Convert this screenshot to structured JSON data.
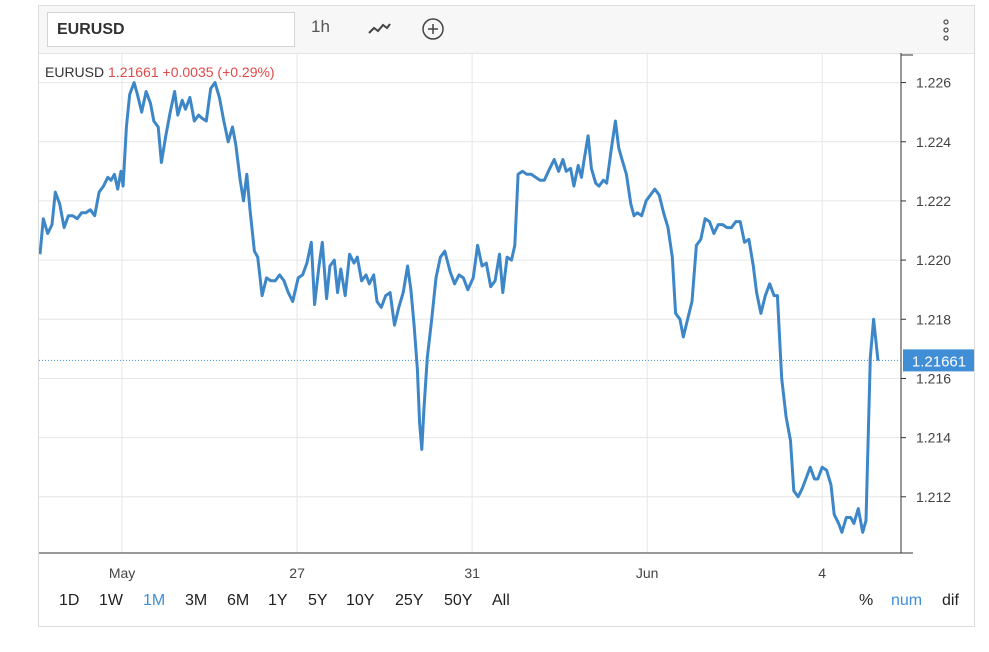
{
  "toolbar": {
    "symbol": "EURUSD",
    "interval": "1h",
    "icons": [
      "line-chart-icon",
      "add-circle-icon",
      "more-vertical-icon"
    ]
  },
  "header": {
    "symbol": "EURUSD",
    "price": "1.21661",
    "change": "+0.0035",
    "change_pct": "(+0.29%)",
    "change_color": "#e04a4a"
  },
  "price_label": "1.21661",
  "ranges": [
    "1D",
    "1W",
    "1M",
    "3M",
    "6M",
    "1Y",
    "5Y",
    "10Y",
    "25Y",
    "50Y",
    "All"
  ],
  "active_range": "1M",
  "modes": [
    "%",
    "num",
    "dif"
  ],
  "active_mode": "num",
  "colors": {
    "line": "#3d87c8",
    "accent": "#3f8ed6",
    "grid": "#e6e6e6"
  },
  "chart_data": {
    "type": "line",
    "title": "",
    "xlabel": "",
    "ylabel": "",
    "x_ticks": [
      {
        "label": "May",
        "x": 7.5
      },
      {
        "label": "27",
        "x": 23.5
      },
      {
        "label": "31",
        "x": 39.5
      },
      {
        "label": "Jun",
        "x": 55.5
      },
      {
        "label": "4",
        "x": 71.5
      }
    ],
    "y_ticks": [
      1.212,
      1.214,
      1.216,
      1.218,
      1.22,
      1.222,
      1.224,
      1.226
    ],
    "ylim": [
      1.2101,
      1.227
    ],
    "xlim": [
      0,
      74
    ],
    "grid": true,
    "last_value": 1.21661,
    "series": [
      {
        "name": "",
        "points": [
          [
            0,
            1.2202
          ],
          [
            0.3,
            1.2214
          ],
          [
            0.7,
            1.2209
          ],
          [
            1.1,
            1.2212
          ],
          [
            1.4,
            1.2223
          ],
          [
            1.8,
            1.2219
          ],
          [
            2.2,
            1.2211
          ],
          [
            2.6,
            1.2215
          ],
          [
            3.0,
            1.2215
          ],
          [
            3.4,
            1.2214
          ],
          [
            3.8,
            1.2216
          ],
          [
            4.2,
            1.2216
          ],
          [
            4.6,
            1.2217
          ],
          [
            5.0,
            1.2215
          ],
          [
            5.4,
            1.2223
          ],
          [
            5.8,
            1.2225
          ],
          [
            6.2,
            1.2228
          ],
          [
            6.5,
            1.2227
          ],
          [
            6.8,
            1.2229
          ],
          [
            7.1,
            1.2224
          ],
          [
            7.4,
            1.223
          ],
          [
            7.6,
            1.2225
          ],
          [
            7.9,
            1.2245
          ],
          [
            8.2,
            1.2256
          ],
          [
            8.6,
            1.226
          ],
          [
            8.9,
            1.2256
          ],
          [
            9.3,
            1.225
          ],
          [
            9.7,
            1.2257
          ],
          [
            10.1,
            1.2253
          ],
          [
            10.4,
            1.2247
          ],
          [
            10.8,
            1.2245
          ],
          [
            11.1,
            1.2233
          ],
          [
            11.5,
            1.2242
          ],
          [
            11.9,
            1.225
          ],
          [
            12.3,
            1.2257
          ],
          [
            12.6,
            1.2249
          ],
          [
            13.0,
            1.2254
          ],
          [
            13.3,
            1.2251
          ],
          [
            13.7,
            1.2255
          ],
          [
            14.1,
            1.2247
          ],
          [
            14.5,
            1.2249
          ],
          [
            14.8,
            1.2248
          ],
          [
            15.2,
            1.2247
          ],
          [
            15.6,
            1.2258
          ],
          [
            16.0,
            1.226
          ],
          [
            16.4,
            1.2255
          ],
          [
            16.8,
            1.2247
          ],
          [
            17.2,
            1.224
          ],
          [
            17.6,
            1.2245
          ],
          [
            17.9,
            1.2239
          ],
          [
            18.3,
            1.2227
          ],
          [
            18.6,
            1.222
          ],
          [
            18.9,
            1.2229
          ],
          [
            19.2,
            1.2217
          ],
          [
            19.6,
            1.2203
          ],
          [
            19.9,
            1.2201
          ],
          [
            20.3,
            1.2188
          ],
          [
            20.7,
            1.2194
          ],
          [
            21.1,
            1.2193
          ],
          [
            21.5,
            1.2193
          ],
          [
            21.9,
            1.2195
          ],
          [
            22.3,
            1.2193
          ],
          [
            22.7,
            1.2189
          ],
          [
            23.1,
            1.2186
          ],
          [
            23.6,
            1.2194
          ],
          [
            24.0,
            1.2195
          ],
          [
            24.4,
            1.2199
          ],
          [
            24.8,
            1.2206
          ],
          [
            25.1,
            1.2185
          ],
          [
            25.5,
            1.2198
          ],
          [
            25.8,
            1.2206
          ],
          [
            26.2,
            1.2187
          ],
          [
            26.5,
            1.2198
          ],
          [
            26.9,
            1.22
          ],
          [
            27.2,
            1.2189
          ],
          [
            27.5,
            1.2197
          ],
          [
            27.9,
            1.2188
          ],
          [
            28.3,
            1.2202
          ],
          [
            28.7,
            1.2199
          ],
          [
            29.0,
            1.2201
          ],
          [
            29.4,
            1.2193
          ],
          [
            29.8,
            1.2195
          ],
          [
            30.1,
            1.2192
          ],
          [
            30.5,
            1.2195
          ],
          [
            30.8,
            1.2186
          ],
          [
            31.2,
            1.2184
          ],
          [
            31.6,
            1.2188
          ],
          [
            32.0,
            1.2189
          ],
          [
            32.4,
            1.2178
          ],
          [
            32.8,
            1.2184
          ],
          [
            33.2,
            1.2189
          ],
          [
            33.6,
            1.2198
          ],
          [
            33.9,
            1.219
          ],
          [
            34.2,
            1.2178
          ],
          [
            34.5,
            1.2163
          ],
          [
            34.7,
            1.2145
          ],
          [
            34.9,
            1.2136
          ],
          [
            35.1,
            1.215
          ],
          [
            35.4,
            1.2167
          ],
          [
            35.8,
            1.218
          ],
          [
            36.2,
            1.2194
          ],
          [
            36.6,
            1.2201
          ],
          [
            37.0,
            1.2203
          ],
          [
            37.5,
            1.2196
          ],
          [
            37.9,
            1.2192
          ],
          [
            38.3,
            1.2195
          ],
          [
            38.7,
            1.2194
          ],
          [
            39.1,
            1.219
          ],
          [
            39.6,
            1.2194
          ],
          [
            40.0,
            1.2205
          ],
          [
            40.4,
            1.2198
          ],
          [
            40.8,
            1.2199
          ],
          [
            41.2,
            1.2191
          ],
          [
            41.6,
            1.2193
          ],
          [
            42.0,
            1.2202
          ],
          [
            42.3,
            1.2189
          ],
          [
            42.7,
            1.2201
          ],
          [
            43.1,
            1.22
          ],
          [
            43.4,
            1.2205
          ],
          [
            43.7,
            1.2229
          ],
          [
            44.1,
            1.223
          ],
          [
            44.5,
            1.2229
          ],
          [
            44.9,
            1.2229
          ],
          [
            45.3,
            1.2228
          ],
          [
            45.7,
            1.2227
          ],
          [
            46.1,
            1.2227
          ],
          [
            46.6,
            1.2231
          ],
          [
            47.0,
            1.2234
          ],
          [
            47.4,
            1.223
          ],
          [
            47.8,
            1.2234
          ],
          [
            48.1,
            1.223
          ],
          [
            48.5,
            1.2231
          ],
          [
            48.8,
            1.2225
          ],
          [
            49.2,
            1.2232
          ],
          [
            49.5,
            1.2228
          ],
          [
            49.7,
            1.2233
          ],
          [
            50.1,
            1.2242
          ],
          [
            50.4,
            1.2231
          ],
          [
            50.8,
            1.2226
          ],
          [
            51.1,
            1.2225
          ],
          [
            51.5,
            1.2227
          ],
          [
            51.8,
            1.2226
          ],
          [
            52.2,
            1.2237
          ],
          [
            52.6,
            1.2247
          ],
          [
            52.9,
            1.2238
          ],
          [
            53.2,
            1.2234
          ],
          [
            53.6,
            1.2229
          ],
          [
            54.0,
            1.2219
          ],
          [
            54.3,
            1.2215
          ],
          [
            54.6,
            1.2216
          ],
          [
            55.0,
            1.2215
          ],
          [
            55.4,
            1.222
          ],
          [
            55.8,
            1.2222
          ],
          [
            56.2,
            1.2224
          ],
          [
            56.6,
            1.2222
          ],
          [
            57.0,
            1.2216
          ],
          [
            57.4,
            1.2211
          ],
          [
            57.8,
            1.2201
          ],
          [
            58.1,
            1.2182
          ],
          [
            58.5,
            1.218
          ],
          [
            58.8,
            1.2174
          ],
          [
            59.2,
            1.218
          ],
          [
            59.6,
            1.2186
          ],
          [
            60.0,
            1.2205
          ],
          [
            60.4,
            1.2207
          ],
          [
            60.8,
            1.2214
          ],
          [
            61.2,
            1.2213
          ],
          [
            61.6,
            1.2209
          ],
          [
            62.0,
            1.2212
          ],
          [
            62.4,
            1.2212
          ],
          [
            62.8,
            1.2211
          ],
          [
            63.2,
            1.2211
          ],
          [
            63.6,
            1.2213
          ],
          [
            64.0,
            1.2213
          ],
          [
            64.4,
            1.2206
          ],
          [
            64.8,
            1.2207
          ],
          [
            65.2,
            1.2198
          ],
          [
            65.5,
            1.2189
          ],
          [
            65.9,
            1.2182
          ],
          [
            66.3,
            1.2188
          ],
          [
            66.7,
            1.2192
          ],
          [
            67.1,
            1.2188
          ],
          [
            67.4,
            1.2188
          ],
          [
            67.8,
            1.216
          ],
          [
            68.2,
            1.2147
          ],
          [
            68.6,
            1.2139
          ],
          [
            68.9,
            1.2122
          ],
          [
            69.3,
            1.212
          ],
          [
            69.7,
            1.2123
          ],
          [
            70.1,
            1.2127
          ],
          [
            70.4,
            1.213
          ],
          [
            70.8,
            1.2126
          ],
          [
            71.1,
            1.2126
          ],
          [
            71.5,
            1.213
          ],
          [
            71.9,
            1.2129
          ],
          [
            72.3,
            1.2124
          ],
          [
            72.6,
            1.2114
          ],
          [
            73.0,
            1.2111
          ],
          [
            73.3,
            1.2108
          ],
          [
            73.7,
            1.2113
          ],
          [
            74.1,
            1.2113
          ],
          [
            74.4,
            1.2111
          ],
          [
            74.8,
            1.2116
          ],
          [
            75.2,
            1.2108
          ],
          [
            75.5,
            1.2112
          ],
          [
            75.9,
            1.2167
          ],
          [
            76.2,
            1.218
          ],
          [
            76.6,
            1.2166
          ]
        ]
      }
    ]
  }
}
